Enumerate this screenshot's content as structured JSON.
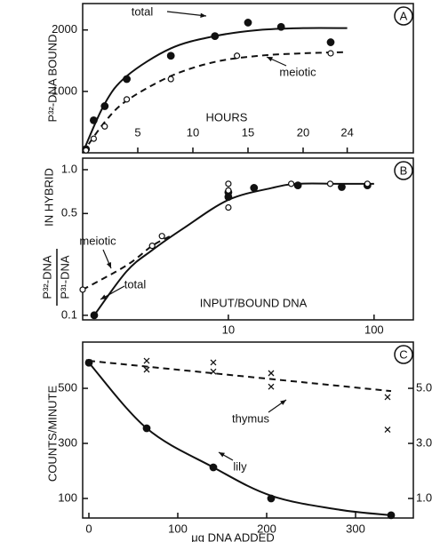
{
  "chart_data": [
    {
      "type": "scatter",
      "panel_label": "A",
      "xlabel": "HOURS",
      "ylabel": "P³²-DNA BOUND",
      "xlim": [
        0,
        30
      ],
      "ylim": [
        0,
        2430
      ],
      "xticks": [
        5,
        10,
        15,
        20,
        24
      ],
      "yticks": [
        1000,
        2000
      ],
      "series": [
        {
          "name": "total",
          "marker": "filled",
          "color": "#111111",
          "x": [
            0.3,
            1,
            2,
            4,
            8,
            12,
            15,
            18,
            22.5
          ],
          "values": [
            60,
            530,
            760,
            1200,
            1580,
            1900,
            2120,
            2050,
            1800
          ]
        },
        {
          "name": "meiotic",
          "marker": "open",
          "color": "#111111",
          "x": [
            0.3,
            1,
            2,
            4,
            8,
            14,
            22.5
          ],
          "values": [
            40,
            230,
            430,
            870,
            1200,
            1580,
            1620
          ]
        }
      ],
      "curves": [
        {
          "style": "solid",
          "x": [
            0,
            2,
            4,
            8,
            12,
            16,
            20,
            24
          ],
          "values": [
            0,
            800,
            1250,
            1700,
            1900,
            2000,
            2030,
            2030
          ]
        },
        {
          "style": "dashed",
          "x": [
            0,
            2,
            4,
            8,
            12,
            16,
            20,
            24
          ],
          "values": [
            0,
            500,
            850,
            1250,
            1480,
            1580,
            1620,
            1640
          ]
        }
      ]
    },
    {
      "type": "scatter",
      "panel_label": "B",
      "log": true,
      "xlabel": "INPUT/BOUND DNA",
      "ylabel": "IN HYBRID",
      "ylabel_fraction": [
        "P³²-DNA",
        "P³¹-DNA"
      ],
      "xlim": [
        1,
        186
      ],
      "ylim": [
        0.093,
        1.2
      ],
      "xticks": [
        10,
        100
      ],
      "yticks": [
        0.1,
        0.5,
        {
          "value": 1,
          "label": "1.0"
        }
      ],
      "series": [
        {
          "name": "total",
          "marker": "filled",
          "color": "#111111",
          "x": [
            1.2,
            10,
            10,
            15,
            30,
            60,
            90
          ],
          "values": [
            0.1,
            0.7,
            0.65,
            0.75,
            0.78,
            0.76,
            0.78
          ]
        },
        {
          "name": "meiotic",
          "marker": "open",
          "color": "#111111",
          "x": [
            1,
            3,
            3.5,
            10,
            10,
            10,
            27,
            50,
            90
          ],
          "values": [
            0.15,
            0.3,
            0.35,
            0.8,
            0.72,
            0.55,
            0.8,
            0.8,
            0.8
          ]
        }
      ],
      "curves": [
        {
          "style": "solid",
          "x": [
            1.2,
            2,
            3,
            5,
            10,
            20,
            30,
            60,
            100
          ],
          "values": [
            0.1,
            0.2,
            0.28,
            0.4,
            0.62,
            0.75,
            0.8,
            0.8,
            0.8
          ]
        },
        {
          "style": "dashed",
          "x": [
            1,
            2,
            3,
            4
          ],
          "values": [
            0.15,
            0.22,
            0.3,
            0.35
          ]
        }
      ]
    },
    {
      "type": "scatter",
      "panel_label": "C",
      "xlabel": "μg DNA ADDED",
      "ylabel": "COUNTS/MINUTE",
      "xlim": [
        -7,
        365
      ],
      "ylim": [
        29,
        668
      ],
      "y2lim": [
        0.29,
        6.68
      ],
      "xticks": [
        0,
        100,
        200,
        300
      ],
      "yticks": [
        100,
        300,
        500
      ],
      "y2ticks": [
        {
          "value": 1,
          "label": "1.0"
        },
        {
          "value": 3,
          "label": "3.0"
        },
        {
          "value": 5,
          "label": "5.0"
        }
      ],
      "series": [
        {
          "name": "lily",
          "marker": "filled",
          "color": "#111111",
          "x": [
            0,
            65,
            140,
            205,
            340
          ],
          "values": [
            593,
            355,
            213,
            100,
            39
          ]
        },
        {
          "name": "thymus",
          "marker": "cross",
          "color": "#111111",
          "axis": "y2",
          "x": [
            0,
            65,
            65,
            140,
            140,
            205,
            205,
            336,
            336
          ],
          "values": [
            5.95,
            6.0,
            5.68,
            5.94,
            5.61,
            5.55,
            5.06,
            4.68,
            3.5
          ]
        }
      ],
      "curves": [
        {
          "style": "solid",
          "x": [
            0,
            65,
            140,
            205,
            280,
            340
          ],
          "values": [
            593,
            355,
            213,
            110,
            60,
            39
          ]
        },
        {
          "style": "dashed",
          "axis": "y2",
          "x": [
            0,
            340
          ],
          "values": [
            6.0,
            4.9
          ]
        }
      ]
    }
  ]
}
